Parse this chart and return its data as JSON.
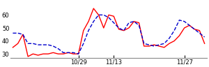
{
  "red_y": [
    35,
    38,
    45,
    28,
    30,
    29,
    30,
    30,
    31,
    30,
    30,
    31,
    30,
    30,
    48,
    55,
    65,
    60,
    50,
    60,
    59,
    49,
    48,
    50,
    55,
    54,
    36,
    36,
    37,
    36,
    35,
    38,
    40,
    44,
    50,
    52,
    49,
    48,
    38
  ],
  "blue_y": [
    46,
    46,
    45,
    38,
    38,
    37,
    37,
    37,
    36,
    34,
    31,
    31,
    31,
    30,
    38,
    48,
    55,
    60,
    60,
    58,
    54,
    50,
    48,
    54,
    55,
    52,
    38,
    37,
    36,
    37,
    38,
    42,
    48,
    56,
    55,
    52,
    49,
    46,
    43
  ],
  "xtick_positions": [
    13,
    20,
    34
  ],
  "xtick_labels": [
    "10/29",
    "11/13",
    "11/27"
  ],
  "ytick_positions": [
    30,
    40,
    50,
    60
  ],
  "ytick_labels": [
    "30",
    "40",
    "50",
    "60"
  ],
  "ylim": [
    27,
    70
  ],
  "red_color": "#ff0000",
  "blue_color": "#0000cc",
  "bg_color": "#ffffff",
  "linewidth": 1.0
}
